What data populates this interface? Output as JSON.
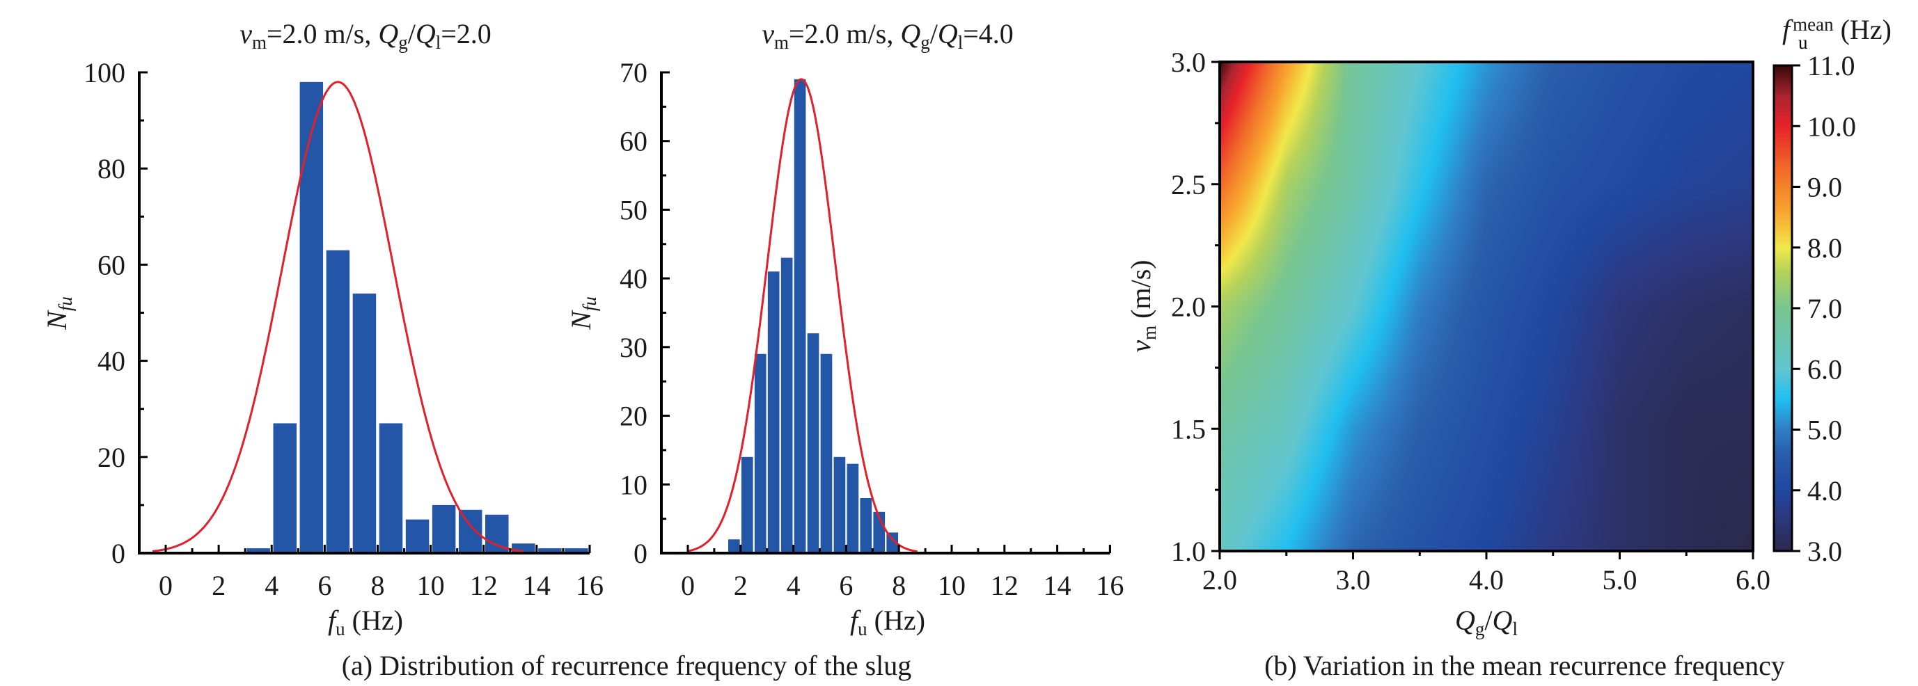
{
  "figure": {
    "caption_a": "(a) Distribution of recurrence frequency of the slug",
    "caption_b": "(b) Variation in the mean recurrence frequency"
  },
  "colors": {
    "bar": "#2356a6",
    "fit_curve": "#e0202a",
    "axis": "#000000"
  },
  "chart_data": [
    {
      "type": "bar",
      "id": "hist-left",
      "title": {
        "v": "v",
        "v_sub": "m",
        "v_val": "=2.0 m/s, ",
        "q": "Q",
        "q_sub": "g",
        "slash": "/",
        "q2": "Q",
        "q2_sub": "l",
        "q_val": "=2.0"
      },
      "title_text": "vm=2.0 m/s, Qg/Ql=2.0",
      "xlabel": {
        "sym": "f",
        "sub": "u",
        "unit": " (Hz)"
      },
      "ylabel": {
        "sym": "N",
        "sub": "fu"
      },
      "xlim": [
        -1.0,
        16.6
      ],
      "ylim": [
        0,
        100
      ],
      "xticks": [
        0,
        2,
        4,
        6,
        8,
        10,
        12,
        14,
        16
      ],
      "yticks": [
        0,
        20,
        40,
        60,
        80,
        100
      ],
      "bin_width": 1.0,
      "bin_centers": [
        3.5,
        4.5,
        5.5,
        6.5,
        7.5,
        8.5,
        9.5,
        10.5,
        11.5,
        12.5,
        13.5,
        14.5,
        15.5
      ],
      "values": [
        1,
        27,
        98,
        63,
        54,
        27,
        7,
        10,
        9,
        8,
        2,
        1,
        1
      ],
      "fit": {
        "type": "gaussian",
        "mean": 6.5,
        "sigma": 2.1,
        "peak": 98,
        "x_range": [
          -0.5,
          13.5
        ]
      }
    },
    {
      "type": "bar",
      "id": "hist-middle",
      "title": {
        "v": "v",
        "v_sub": "m",
        "v_val": "=2.0 m/s, ",
        "q": "Q",
        "q_sub": "g",
        "slash": "/",
        "q2": "Q",
        "q2_sub": "l",
        "q_val": "=4.0"
      },
      "title_text": "vm=2.0 m/s, Qg/Ql=4.0",
      "xlabel": {
        "sym": "f",
        "sub": "u",
        "unit": " (Hz)"
      },
      "ylabel": {
        "sym": "N",
        "sub": "fu"
      },
      "xlim": [
        -1.0,
        16.0
      ],
      "ylim": [
        0,
        70
      ],
      "xticks": [
        0,
        2,
        4,
        6,
        8,
        10,
        12,
        14,
        16
      ],
      "yticks": [
        0,
        10,
        20,
        30,
        40,
        50,
        60,
        70
      ],
      "bin_width": 0.5,
      "bin_centers": [
        1.75,
        2.25,
        2.75,
        3.25,
        3.75,
        4.25,
        4.75,
        5.25,
        5.75,
        6.25,
        6.75,
        7.25,
        7.75
      ],
      "values": [
        2,
        14,
        29,
        41,
        43,
        69,
        32,
        29,
        14,
        13,
        8,
        6,
        3
      ],
      "fit": {
        "type": "gaussian",
        "mean": 4.3,
        "sigma": 1.3,
        "peak": 69,
        "x_range": [
          0.0,
          8.7
        ]
      }
    },
    {
      "type": "heatmap",
      "id": "contour-mean-frequency",
      "xlabel": {
        "q": "Q",
        "q_sub": "g",
        "slash": "/",
        "q2": "Q",
        "q2_sub": "l"
      },
      "ylabel": {
        "sym": "v",
        "sub": "m",
        "unit": " (m/s)"
      },
      "xlim": [
        2.0,
        6.0
      ],
      "ylim": [
        1.0,
        3.0
      ],
      "xticks": [
        "2.0",
        "3.0",
        "4.0",
        "5.0",
        "6.0"
      ],
      "yticks": [
        "1.0",
        "1.5",
        "2.0",
        "2.5",
        "3.0"
      ],
      "x": [
        2.0,
        2.5,
        3.0,
        3.5,
        4.0,
        4.5,
        5.0,
        5.5,
        6.0
      ],
      "y": [
        1.0,
        1.5,
        2.0,
        2.5,
        3.0
      ],
      "z": [
        [
          6.2,
          5.5,
          4.7,
          4.3,
          4.0,
          3.6,
          3.3,
          3.1,
          3.0
        ],
        [
          6.7,
          6.2,
          5.2,
          4.6,
          4.2,
          3.8,
          3.3,
          3.1,
          3.1
        ],
        [
          7.5,
          6.8,
          6.0,
          5.0,
          4.4,
          4.0,
          3.5,
          3.3,
          3.2
        ],
        [
          9.3,
          7.5,
          6.6,
          5.6,
          4.7,
          4.3,
          4.1,
          3.9,
          3.8
        ],
        [
          11.0,
          8.7,
          6.8,
          6.0,
          5.2,
          4.6,
          4.3,
          4.1,
          4.0
        ]
      ],
      "colorbar": {
        "label": {
          "sym": "f",
          "sub": "u",
          "sup": "mean",
          "unit": " (Hz)"
        },
        "range": [
          3.0,
          11.0
        ],
        "ticks": [
          "3.0",
          "4.0",
          "5.0",
          "6.0",
          "7.0",
          "8.0",
          "9.0",
          "10.0",
          "11.0"
        ],
        "stops": [
          {
            "v": 3.0,
            "color": "#2b2a4c"
          },
          {
            "v": 3.6,
            "color": "#2c3a84"
          },
          {
            "v": 4.0,
            "color": "#1f48a0"
          },
          {
            "v": 4.6,
            "color": "#2a5eab"
          },
          {
            "v": 5.0,
            "color": "#2f7fc4"
          },
          {
            "v": 5.5,
            "color": "#20bff0"
          },
          {
            "v": 6.0,
            "color": "#62c6d0"
          },
          {
            "v": 7.0,
            "color": "#79c690"
          },
          {
            "v": 7.6,
            "color": "#b5d25a"
          },
          {
            "v": 8.0,
            "color": "#f1e84a"
          },
          {
            "v": 8.6,
            "color": "#f8a52f"
          },
          {
            "v": 9.3,
            "color": "#f16a2a"
          },
          {
            "v": 10.0,
            "color": "#e8232a"
          },
          {
            "v": 10.5,
            "color": "#a92532"
          },
          {
            "v": 11.0,
            "color": "#3a0a0a"
          }
        ]
      }
    }
  ]
}
